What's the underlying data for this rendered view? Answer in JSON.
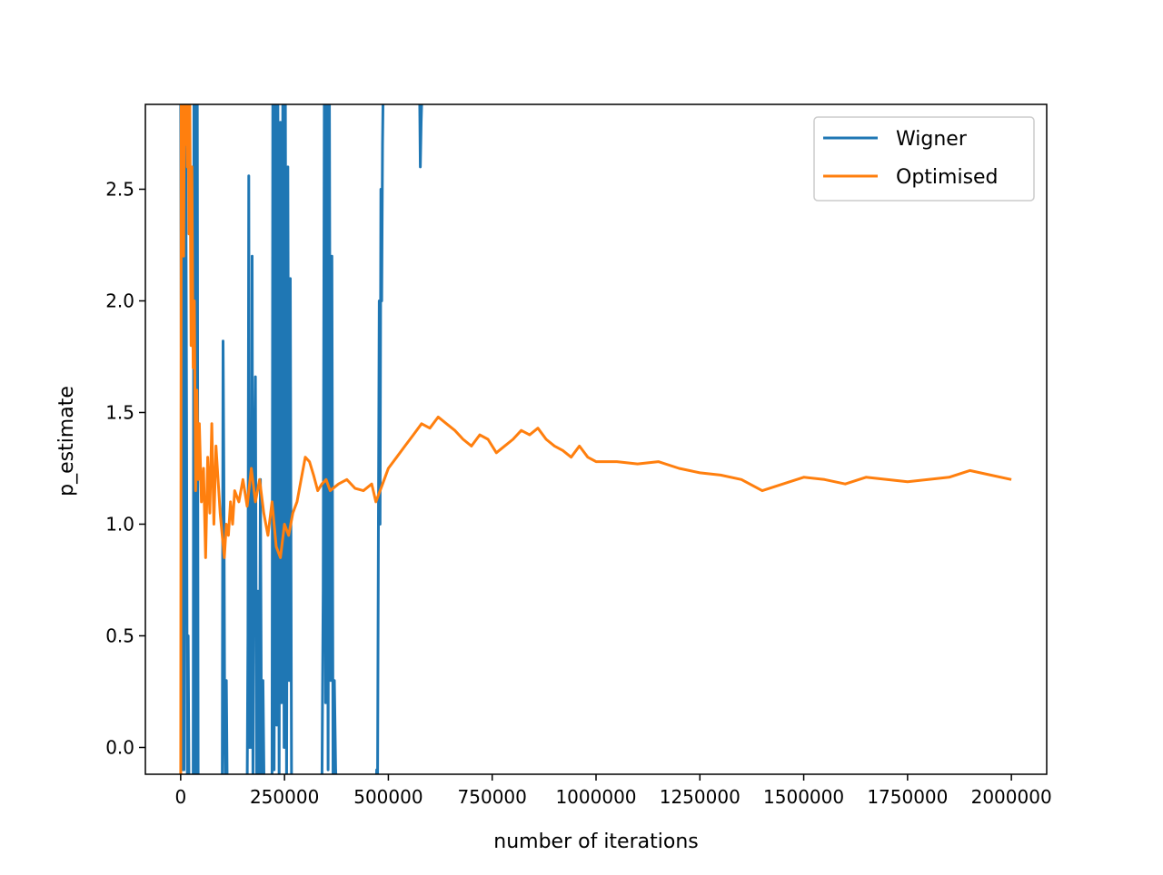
{
  "chart_data": {
    "type": "line",
    "title": "",
    "xlabel": "number of iterations",
    "ylabel": "p_estimate",
    "xlim": [
      -85000,
      2085000
    ],
    "ylim": [
      -0.12,
      2.88
    ],
    "xticks": [
      0,
      250000,
      500000,
      750000,
      1000000,
      1250000,
      1500000,
      1750000,
      2000000
    ],
    "xtick_labels": [
      "0",
      "250000",
      "500000",
      "750000",
      "1000000",
      "1250000",
      "1500000",
      "1750000",
      "2000000"
    ],
    "yticks": [
      0.0,
      0.5,
      1.0,
      1.5,
      2.0,
      2.5
    ],
    "ytick_labels": [
      "0.0",
      "0.5",
      "1.0",
      "1.5",
      "2.0",
      "2.5"
    ],
    "grid": false,
    "legend_position": "upper right",
    "series": [
      {
        "name": "Wigner",
        "color": "#1f77b4",
        "x": [
          0,
          2000,
          4000,
          6000,
          8000,
          10000,
          12000,
          14000,
          16000,
          18000,
          20000,
          25000,
          30000,
          32000,
          34000,
          36000,
          38000,
          40000,
          42000,
          44000,
          60000,
          80000,
          100000,
          102000,
          104000,
          106000,
          108000,
          110000,
          112000,
          150000,
          160000,
          162000,
          164000,
          166000,
          168000,
          170000,
          172000,
          174000,
          176000,
          180000,
          183000,
          186000,
          189000,
          192000,
          195000,
          198000,
          201000,
          204000,
          220000,
          222000,
          225000,
          228000,
          231000,
          234000,
          237000,
          240000,
          243000,
          246000,
          249000,
          252000,
          255000,
          258000,
          261000,
          264000,
          267000,
          270000,
          300000,
          330000,
          340000,
          343000,
          346000,
          349000,
          352000,
          355000,
          358000,
          361000,
          364000,
          367000,
          370000,
          373000,
          376000,
          380000,
          420000,
          460000,
          470000,
          472000,
          474000,
          476000,
          478000,
          480000,
          482000,
          484000,
          486000,
          488000,
          490000,
          500000,
          560000,
          570000,
          573000,
          575000,
          577000,
          579000,
          582000
        ],
        "values": [
          2.9,
          1.2,
          -0.1,
          2.3,
          -0.1,
          1.9,
          3.0,
          1.5,
          -0.2,
          0.5,
          -0.2,
          -0.2,
          -0.2,
          3.0,
          -0.2,
          2.9,
          -0.2,
          3.0,
          -0.2,
          -0.2,
          -0.2,
          -0.2,
          -0.2,
          1.82,
          1.2,
          0.1,
          -0.2,
          0.3,
          -0.2,
          -0.2,
          -0.2,
          0.5,
          2.56,
          0.0,
          1.3,
          0.0,
          2.2,
          -0.2,
          0.9,
          1.66,
          -0.2,
          0.7,
          -0.2,
          1.2,
          -0.2,
          0.3,
          -0.2,
          -0.2,
          -0.2,
          3.0,
          -0.1,
          2.9,
          0.1,
          3.0,
          -0.2,
          2.8,
          0.2,
          3.0,
          0.0,
          2.9,
          -0.2,
          2.6,
          0.3,
          2.1,
          -0.2,
          -0.2,
          -0.2,
          -0.2,
          -0.2,
          0.7,
          3.0,
          0.2,
          2.9,
          -0.1,
          3.0,
          0.3,
          2.2,
          -0.2,
          0.3,
          -0.1,
          -0.2,
          -0.2,
          -0.2,
          -0.2,
          -0.2,
          -0.1,
          -0.2,
          1.0,
          2.0,
          1.0,
          2.5,
          2.0,
          2.7,
          3.0,
          3.0,
          3.0,
          3.0,
          3.0,
          3.0,
          3.0,
          2.6,
          2.8,
          3.0
        ]
      },
      {
        "name": "Optimised",
        "color": "#ff7f0e",
        "x": [
          0,
          1500,
          3000,
          5000,
          7000,
          9000,
          11000,
          13000,
          16000,
          18000,
          20000,
          22000,
          25000,
          27000,
          30000,
          33000,
          36000,
          39000,
          42000,
          45000,
          50000,
          55000,
          60000,
          65000,
          70000,
          75000,
          80000,
          85000,
          90000,
          95000,
          100000,
          105000,
          110000,
          115000,
          120000,
          125000,
          130000,
          140000,
          150000,
          160000,
          170000,
          180000,
          190000,
          200000,
          210000,
          220000,
          230000,
          240000,
          250000,
          260000,
          270000,
          280000,
          290000,
          300000,
          310000,
          320000,
          330000,
          340000,
          350000,
          360000,
          380000,
          400000,
          420000,
          440000,
          460000,
          470000,
          480000,
          490000,
          500000,
          520000,
          540000,
          560000,
          580000,
          600000,
          620000,
          640000,
          660000,
          680000,
          700000,
          720000,
          740000,
          760000,
          780000,
          800000,
          820000,
          840000,
          860000,
          880000,
          900000,
          920000,
          940000,
          960000,
          980000,
          1000000,
          1050000,
          1100000,
          1150000,
          1200000,
          1250000,
          1300000,
          1350000,
          1400000,
          1450000,
          1500000,
          1550000,
          1600000,
          1650000,
          1700000,
          1750000,
          1800000,
          1850000,
          1900000,
          1950000,
          2000000
        ],
        "values": [
          -0.2,
          3.0,
          2.5,
          3.0,
          2.2,
          3.0,
          2.7,
          3.0,
          2.6,
          2.9,
          2.3,
          2.9,
          1.8,
          2.6,
          1.7,
          2.0,
          1.15,
          1.6,
          1.2,
          1.45,
          1.1,
          1.25,
          0.85,
          1.3,
          1.05,
          1.45,
          1.0,
          1.35,
          1.2,
          1.05,
          0.95,
          0.85,
          1.0,
          0.95,
          1.1,
          1.0,
          1.15,
          1.1,
          1.2,
          1.08,
          1.25,
          1.1,
          1.2,
          1.05,
          0.95,
          1.1,
          0.9,
          0.85,
          1.0,
          0.95,
          1.05,
          1.1,
          1.2,
          1.3,
          1.28,
          1.22,
          1.15,
          1.18,
          1.2,
          1.15,
          1.18,
          1.2,
          1.16,
          1.15,
          1.18,
          1.1,
          1.15,
          1.2,
          1.25,
          1.3,
          1.35,
          1.4,
          1.45,
          1.43,
          1.48,
          1.45,
          1.42,
          1.38,
          1.35,
          1.4,
          1.38,
          1.32,
          1.35,
          1.38,
          1.42,
          1.4,
          1.43,
          1.38,
          1.35,
          1.33,
          1.3,
          1.35,
          1.3,
          1.28,
          1.28,
          1.27,
          1.28,
          1.25,
          1.23,
          1.22,
          1.2,
          1.15,
          1.18,
          1.21,
          1.2,
          1.18,
          1.21,
          1.2,
          1.19,
          1.2,
          1.21,
          1.24,
          1.22,
          1.2
        ]
      }
    ]
  }
}
